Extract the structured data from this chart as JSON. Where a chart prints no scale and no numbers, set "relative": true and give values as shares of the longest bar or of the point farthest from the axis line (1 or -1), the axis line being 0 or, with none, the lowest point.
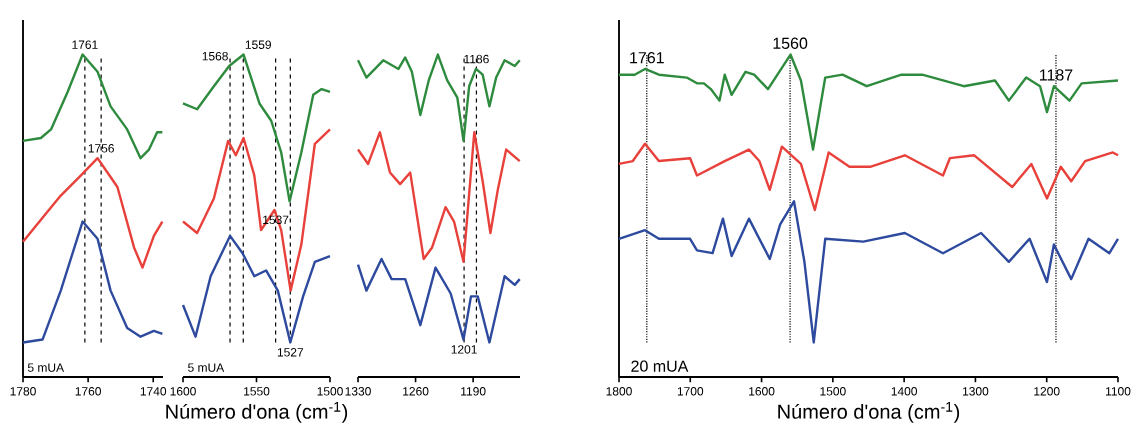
{
  "chart_data": [
    {
      "type": "line",
      "relative": true,
      "xlim": [
        1780,
        1737
      ],
      "xticks": [
        1780,
        1760,
        1740
      ],
      "series": [
        {
          "color": "#2e8b3e",
          "x": [
            1780,
            1774.5,
            1771.4,
            1766.3,
            1761.7,
            1757.1,
            1753.1,
            1748,
            1743.9,
            1741.3,
            1738.8,
            1737.2
          ],
          "values": [
            0.7,
            0.71,
            0.74,
            0.87,
            1.0,
            0.94,
            0.82,
            0.74,
            0.64,
            0.67,
            0.73,
            0.73
          ]
        },
        {
          "color": "#e8403a",
          "x": [
            1780,
            1773.5,
            1768.4,
            1762.2,
            1757.1,
            1751,
            1745.9,
            1743.3,
            1739.8,
            1737.2
          ],
          "values": [
            0.35,
            0.44,
            0.51,
            0.58,
            0.64,
            0.54,
            0.33,
            0.26,
            0.37,
            0.42
          ]
        },
        {
          "color": "#2e4a9e",
          "x": [
            1780,
            1774,
            1768.4,
            1761.7,
            1757.1,
            1753.1,
            1748,
            1743.9,
            1739.8,
            1737.2
          ],
          "values": [
            0.0,
            0.01,
            0.18,
            0.42,
            0.36,
            0.18,
            0.05,
            0.02,
            0.04,
            0.03
          ]
        }
      ],
      "ref_lines": [
        {
          "axis": "x",
          "value": 1761,
          "line_style": "dashed"
        },
        {
          "axis": "x",
          "value": 1756,
          "line_style": "dashed"
        }
      ],
      "annotations": [
        {
          "text": "1761",
          "x": 1761,
          "y": 1.0
        },
        {
          "text": "1756",
          "x": 1756,
          "y": 0.64
        },
        "5 mUA"
      ]
    },
    {
      "type": "line",
      "relative": true,
      "xlabel": "Número d'ona (cm$^{-1}$)",
      "xlim": [
        1600,
        1500
      ],
      "xticks": [
        1600,
        1550,
        1500
      ],
      "series": [
        {
          "color": "#2e8b3e",
          "x": [
            1600,
            1590.4,
            1579,
            1568.6,
            1558.8,
            1548,
            1540,
            1533.2,
            1527.5,
            1519.5,
            1511.4,
            1505.7,
            1500
          ],
          "values": [
            0.83,
            0.81,
            0.89,
            0.96,
            1.0,
            0.83,
            0.77,
            0.66,
            0.49,
            0.66,
            0.86,
            0.88,
            0.87
          ]
        },
        {
          "color": "#e8403a",
          "x": [
            1600,
            1590.4,
            1579,
            1569.3,
            1564.1,
            1558.8,
            1551.5,
            1546.9,
            1537.8,
            1533.2,
            1526.8,
            1519.5,
            1510.3,
            1500
          ],
          "values": [
            0.42,
            0.38,
            0.5,
            0.7,
            0.65,
            0.71,
            0.58,
            0.39,
            0.46,
            0.39,
            0.18,
            0.34,
            0.69,
            0.74
          ]
        },
        {
          "color": "#2e4a9e",
          "x": [
            1600,
            1591.5,
            1581.2,
            1568,
            1559.5,
            1551.5,
            1543.5,
            1535.5,
            1527,
            1518.3,
            1510.3,
            1500
          ],
          "values": [
            0.13,
            0.02,
            0.23,
            0.37,
            0.31,
            0.23,
            0.25,
            0.18,
            0.0,
            0.16,
            0.28,
            0.3
          ]
        }
      ],
      "ref_lines": [
        {
          "axis": "x",
          "value": 1568,
          "line_style": "dashed"
        },
        {
          "axis": "x",
          "value": 1559,
          "line_style": "dashed"
        },
        {
          "axis": "x",
          "value": 1537,
          "line_style": "dashed"
        },
        {
          "axis": "x",
          "value": 1527,
          "line_style": "dashed"
        }
      ],
      "annotations": [
        {
          "text": "1568",
          "x": 1568,
          "y": 0.96
        },
        {
          "text": "1559",
          "x": 1559,
          "y": 1.0
        },
        {
          "text": "1537",
          "x": 1537,
          "y": 0.46
        },
        {
          "text": "1527",
          "x": 1527,
          "y": 0.0
        },
        "5 mUA"
      ]
    },
    {
      "type": "line",
      "relative": true,
      "xlim": [
        1330,
        1133
      ],
      "xticks": [
        1330,
        1260,
        1190
      ],
      "series": [
        {
          "color": "#2e8b3e",
          "x": [
            1330,
            1319.8,
            1299.3,
            1280.8,
            1272.6,
            1264.5,
            1254.2,
            1244,
            1232.9,
            1221.5,
            1209.2,
            1201.7,
            1194.8,
            1186.6,
            1178.4,
            1170.2,
            1162,
            1151.7,
            1139.4,
            1133.3
          ],
          "values": [
            0.98,
            0.92,
            0.98,
            0.95,
            0.99,
            0.94,
            0.79,
            0.91,
            1.0,
            0.91,
            0.85,
            0.7,
            0.89,
            0.95,
            0.93,
            0.82,
            0.92,
            0.98,
            0.96,
            0.98
          ]
        },
        {
          "color": "#e8403a",
          "x": [
            1330,
            1317.7,
            1303.4,
            1291.1,
            1278.8,
            1266.5,
            1250.1,
            1239.9,
            1223.5,
            1213.2,
            1201.7,
            1188.6,
            1178.4,
            1169,
            1160,
            1149.8,
            1133.3
          ],
          "values": [
            0.67,
            0.62,
            0.73,
            0.59,
            0.55,
            0.59,
            0.29,
            0.33,
            0.47,
            0.42,
            0.28,
            0.73,
            0.56,
            0.38,
            0.53,
            0.67,
            0.63
          ]
        },
        {
          "color": "#2e4a9e",
          "x": [
            1330,
            1319.8,
            1301.4,
            1289.1,
            1272.6,
            1254.2,
            1235.7,
            1217.3,
            1201.7,
            1192.6,
            1184.4,
            1170.2,
            1151.7,
            1139.4,
            1133.3
          ],
          "values": [
            0.27,
            0.18,
            0.29,
            0.22,
            0.22,
            0.06,
            0.26,
            0.17,
            0.01,
            0.16,
            0.16,
            0.0,
            0.23,
            0.2,
            0.22
          ]
        }
      ],
      "ref_lines": [
        {
          "axis": "x",
          "value": 1201,
          "line_style": "dashed"
        },
        {
          "axis": "x",
          "value": 1186,
          "line_style": "dashed"
        }
      ],
      "annotations": [
        {
          "text": "1201",
          "x": 1201,
          "y": 0.01
        },
        {
          "text": "1186",
          "x": 1186,
          "y": 0.95
        }
      ]
    },
    {
      "type": "line",
      "relative": true,
      "xlabel": "Número d'ona (cm$^{-1}$)",
      "xlim": [
        1800,
        1100
      ],
      "xticks": [
        1800,
        1700,
        1600,
        1500,
        1400,
        1300,
        1200,
        1100
      ],
      "series": [
        {
          "color": "#2e8b3e",
          "x": [
            1800,
            1778,
            1763.5,
            1744,
            1705,
            1690.6,
            1680.9,
            1671.2,
            1659,
            1651.7,
            1642,
            1622.6,
            1610.4,
            1591,
            1559.4,
            1544.8,
            1527.8,
            1510.7,
            1486.4,
            1452.5,
            1403.8,
            1374.6,
            1316.3,
            1272.5,
            1253.1,
            1228.8,
            1209.3,
            1199.6,
            1189.9,
            1168,
            1151,
            1100
          ],
          "values": [
            0.93,
            0.93,
            0.95,
            0.93,
            0.92,
            0.9,
            0.9,
            0.88,
            0.84,
            0.93,
            0.86,
            0.94,
            0.93,
            0.88,
            1.0,
            0.91,
            0.67,
            0.92,
            0.93,
            0.89,
            0.93,
            0.93,
            0.89,
            0.91,
            0.84,
            0.92,
            0.89,
            0.8,
            0.89,
            0.84,
            0.9,
            0.91
          ]
        },
        {
          "color": "#e8403a",
          "x": [
            1800,
            1780.6,
            1763.5,
            1744,
            1700.3,
            1690.6,
            1651.7,
            1617.7,
            1603.1,
            1588.5,
            1571.5,
            1544.8,
            1525.3,
            1505.9,
            1476.7,
            1447.6,
            1399,
            1345.5,
            1335.8,
            1301.7,
            1248.3,
            1221.5,
            1199.6,
            1180.2,
            1165.6,
            1146.1,
            1107.3,
            1100
          ],
          "values": [
            0.62,
            0.63,
            0.69,
            0.63,
            0.64,
            0.58,
            0.63,
            0.67,
            0.63,
            0.53,
            0.68,
            0.62,
            0.46,
            0.66,
            0.61,
            0.61,
            0.65,
            0.58,
            0.64,
            0.65,
            0.54,
            0.62,
            0.5,
            0.61,
            0.56,
            0.63,
            0.66,
            0.65
          ]
        },
        {
          "color": "#2e4a9e",
          "x": [
            1800,
            1763.5,
            1744,
            1700.3,
            1690.6,
            1668.7,
            1654.2,
            1642,
            1617.7,
            1588.5,
            1573.9,
            1554.5,
            1539.9,
            1526.8,
            1510.7,
            1457.3,
            1399,
            1345.5,
            1292,
            1253.1,
            1224,
            1199.6,
            1189.9,
            1165.6,
            1141.3,
            1112.1,
            1100
          ],
          "values": [
            0.36,
            0.39,
            0.36,
            0.36,
            0.32,
            0.31,
            0.43,
            0.3,
            0.43,
            0.29,
            0.41,
            0.49,
            0.28,
            0.0,
            0.36,
            0.35,
            0.38,
            0.31,
            0.38,
            0.28,
            0.36,
            0.21,
            0.34,
            0.22,
            0.36,
            0.31,
            0.36
          ]
        }
      ],
      "ref_lines": [
        {
          "axis": "x",
          "value": 1761,
          "line_style": "dotted"
        },
        {
          "axis": "x",
          "value": 1560,
          "line_style": "dotted"
        },
        {
          "axis": "x",
          "value": 1187,
          "line_style": "dotted"
        }
      ],
      "annotations": [
        {
          "text": "1761",
          "x": 1761,
          "y": 0.95
        },
        {
          "text": "1560",
          "x": 1560,
          "y": 1.0
        },
        {
          "text": "1187",
          "x": 1187,
          "y": 0.89
        },
        "20 mUA"
      ]
    }
  ]
}
